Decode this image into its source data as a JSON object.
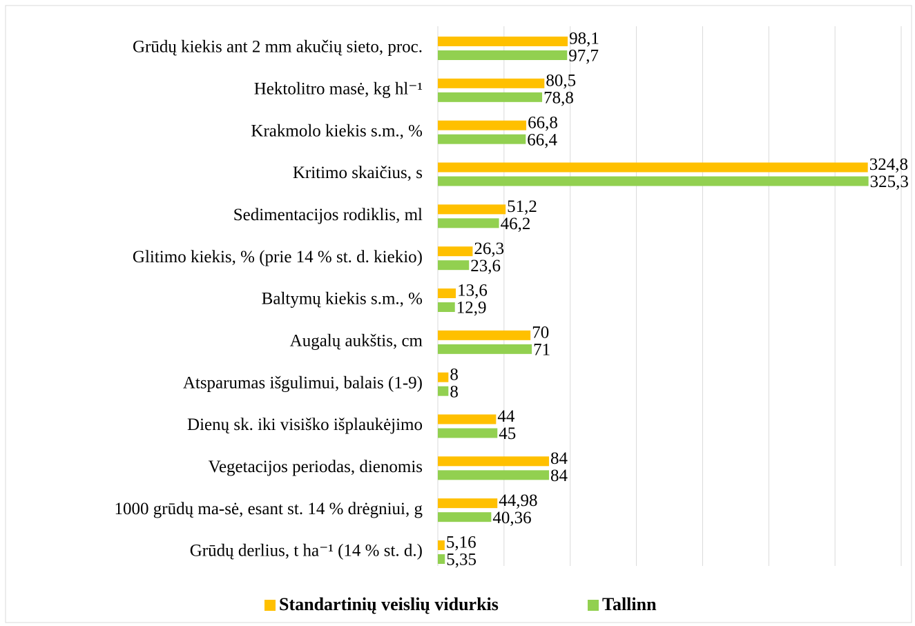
{
  "chart_data": {
    "type": "bar",
    "orientation": "horizontal",
    "categories": [
      "Grūdų kiekis ant 2 mm akučių sieto, proc.",
      "Hektolitro masė, kg hl⁻¹",
      "Krakmolo kiekis s.m., %",
      "Kritimo skaičius, s",
      "Sedimentacijos rodiklis, ml",
      "Glitimo kiekis, % (prie 14 % st. d. kiekio)",
      "Baltymų kiekis s.m., %",
      "Augalų aukštis, cm ",
      "Atsparumas išgulimui, balais (1-9)",
      "Dienų sk. iki visiško išplaukėjimo",
      "Vegetacijos periodas, dienomis",
      "1000 grūdų ma-sė, esant st. 14 % drėgniui,  g",
      "Grūdų derlius, t ha⁻¹ (14 % st. d.)"
    ],
    "series": [
      {
        "name": "Standartinių veislių vidurkis",
        "color": "#FFC000",
        "values": [
          98.1,
          80.5,
          66.8,
          324.8,
          51.2,
          26.3,
          13.6,
          70,
          8,
          44,
          84,
          44.98,
          5.16
        ],
        "value_labels": [
          "98,1",
          "80,5",
          "66,8",
          "324,8",
          "51,2",
          "26,3",
          "13,6",
          "70",
          "8",
          "44",
          "84",
          "44,98",
          "5,16"
        ]
      },
      {
        "name": "Tallinn",
        "color": "#92D050",
        "values": [
          97.7,
          78.8,
          66.4,
          325.3,
          46.2,
          23.6,
          12.9,
          71,
          8,
          45,
          84,
          40.36,
          5.35
        ],
        "value_labels": [
          "97,7",
          "78,8",
          "66,4",
          "325,3",
          "46,2",
          "23,6",
          "12,9",
          "71",
          "8",
          "45",
          "84",
          "40,36",
          "5,35"
        ]
      }
    ],
    "xlim": [
      0,
      350
    ],
    "xticks": [
      0,
      50,
      100,
      150,
      200,
      250,
      300,
      350
    ],
    "grid": true,
    "legend": "bottom"
  }
}
